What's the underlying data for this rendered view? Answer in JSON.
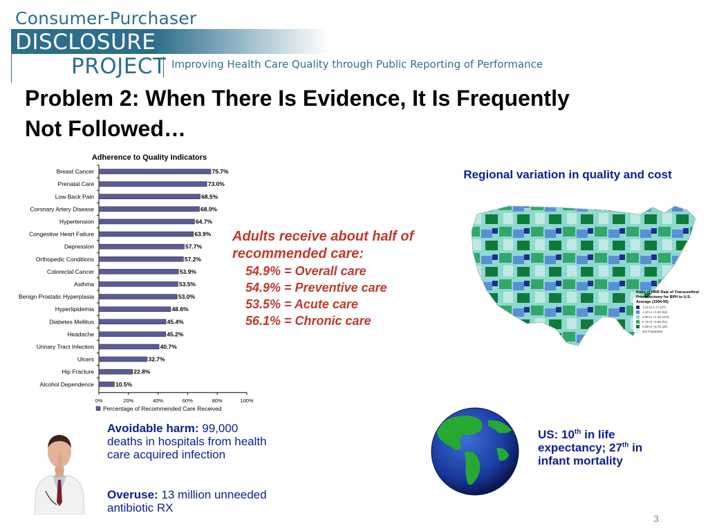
{
  "header": {
    "logo_line1": "Consumer-Purchaser",
    "logo_line2": "DISCLOSURE",
    "logo_line3": "PROJECT",
    "tagline": "Improving Health Care Quality through Public Reporting of Performance"
  },
  "slide": {
    "title": "Problem 2:  When There Is Evidence, It Is Frequently Not Followed…",
    "page_number": "3"
  },
  "chart_data": {
    "type": "bar",
    "orientation": "horizontal",
    "title": "Adherence to Quality Indicators",
    "categories": [
      "Breast Cancer",
      "Prenatal Care",
      "Low Back Pain",
      "Coronary Artery Disease",
      "Hypertension",
      "Congestive Heart Failure",
      "Depression",
      "Orthopedic Conditions",
      "Colorectal Cancer",
      "Asthma",
      "Benign Prostatic Hyperplasia",
      "Hyperlipidemia",
      "Diabetes Mellitus",
      "Headache",
      "Urinary Tract Infection",
      "Ulcers",
      "Hip Fracture",
      "Alcohol Dependence"
    ],
    "series": [
      {
        "name": "Percentage of Recommended Care Received",
        "values": [
          75.7,
          73.0,
          68.5,
          68.0,
          64.7,
          63.9,
          57.7,
          57.2,
          53.9,
          53.5,
          53.0,
          48.6,
          45.4,
          45.2,
          40.7,
          32.7,
          22.8,
          10.5
        ]
      }
    ],
    "data_labels": [
      "75.7%",
      "73.0%",
      "68.5%",
      "68.0%",
      "64.7%",
      "63.9%",
      "57.7%",
      "57.2%",
      "53.9%",
      "53.5%",
      "53.0%",
      "48.6%",
      "45.4%",
      "45.2%",
      "40.7%",
      "32.7%",
      "22.8%",
      "10.5%"
    ],
    "xlim": [
      0,
      100
    ],
    "xticks": [
      0,
      20,
      40,
      60,
      80,
      100
    ],
    "xtick_labels": [
      "0%",
      "20%",
      "40%",
      "60%",
      "80%",
      "100%"
    ],
    "legend": "bottom",
    "grid": false,
    "bar_color": "#5b5b9a"
  },
  "callout": {
    "heading": "Adults receive about half of recommended care:",
    "items": [
      "54.9% = Overall care",
      "54.9% = Preventive care",
      "53.5% = Acute care",
      "56.1% = Chronic care"
    ]
  },
  "map": {
    "title": "Regional variation in quality and cost",
    "legend_title": "Ratio of HRR Rate of Transurethral Prostatectomy for BPH to U.S. Average (1994-95)",
    "legend_items": [
      {
        "label": "1.30 to 1.71  (27)",
        "color": "#1a2f8c"
      },
      {
        "label": "1.10 to <1.30  (64)",
        "color": "#5a8fd6"
      },
      {
        "label": "0.90 to <1.10  (104)",
        "color": "#8fd8d0"
      },
      {
        "label": "0.75 to <0.90  (91)",
        "color": "#2fa86a"
      },
      {
        "label": "0.55 to <0.75  (20)",
        "color": "#0f7a3a"
      },
      {
        "label": "Not Populated",
        "color": "#dfeee8"
      }
    ]
  },
  "harm": {
    "lead": "Avoidable harm:",
    "text": " 99,000 deaths in hospitals from health care acquired infection"
  },
  "overuse": {
    "lead": "Overuse:",
    "text": " 13 million unneeded antibiotic RX"
  },
  "us": {
    "part1": "US: 10",
    "sup1": "th",
    "part2": " in life expectancy; 27",
    "sup2": "th",
    "part3": " in infant mortality"
  },
  "colors": {
    "accent_blue": "#0a1f8f",
    "callout_red": "#c0392b",
    "logo_teal": "#2c6e8c"
  }
}
